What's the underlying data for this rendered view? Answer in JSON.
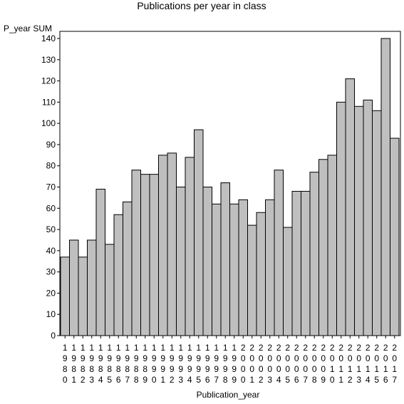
{
  "chart_data": {
    "type": "bar",
    "title": "Publications per year in class",
    "xlabel": "Publication_year",
    "ylabel": "P_year SUM",
    "ylim": [
      0,
      140
    ],
    "yticks": [
      0,
      10,
      20,
      30,
      40,
      50,
      60,
      70,
      80,
      90,
      100,
      110,
      120,
      130,
      140
    ],
    "grid": false,
    "bar_color": "#bfbfbf",
    "categories": [
      "1980",
      "1981",
      "1982",
      "1983",
      "1984",
      "1985",
      "1986",
      "1987",
      "1988",
      "1989",
      "1990",
      "1991",
      "1992",
      "1993",
      "1994",
      "1995",
      "1996",
      "1997",
      "1998",
      "1999",
      "2000",
      "2001",
      "2002",
      "2003",
      "2004",
      "2005",
      "2006",
      "2007",
      "2008",
      "2009",
      "2010",
      "2011",
      "2012",
      "2013",
      "2014",
      "2015",
      "2016",
      "2017"
    ],
    "values": [
      37,
      45,
      37,
      45,
      69,
      43,
      57,
      63,
      78,
      76,
      76,
      85,
      86,
      70,
      84,
      97,
      70,
      62,
      72,
      62,
      64,
      52,
      58,
      64,
      78,
      51,
      68,
      68,
      77,
      83,
      85,
      110,
      121,
      108,
      111,
      106,
      140,
      93
    ]
  }
}
